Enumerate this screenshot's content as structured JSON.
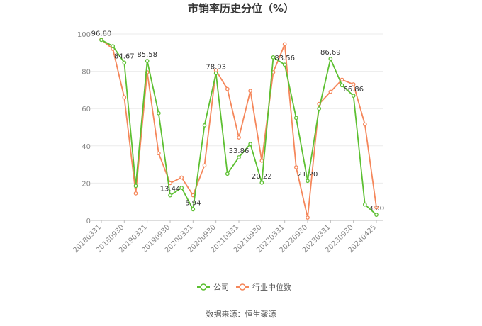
{
  "chart_data": {
    "type": "line",
    "title": "市销率历史分位（%）",
    "source": "数据来源：恒生聚源",
    "ylim": [
      0,
      100
    ],
    "yticks": [
      0,
      20,
      40,
      60,
      80,
      100
    ],
    "x": [
      "20180331",
      "20180630",
      "20180930",
      "20181231",
      "20190331",
      "20190630",
      "20190930",
      "20191231",
      "20200331",
      "20200630",
      "20200930",
      "20201231",
      "20210331",
      "20210630",
      "20210930",
      "20211231",
      "20220331",
      "20220630",
      "20220930",
      "20221231",
      "20230331",
      "20230630",
      "20230930",
      "20231231",
      "20240425"
    ],
    "x_tick_labels": [
      "20180331",
      "20180930",
      "20190331",
      "20190930",
      "20200331",
      "20200930",
      "20210331",
      "20210930",
      "20220331",
      "20220930",
      "20230331",
      "20230930",
      "20240425"
    ],
    "x_tick_indices": [
      0,
      2,
      4,
      6,
      8,
      10,
      12,
      14,
      16,
      18,
      20,
      22,
      24
    ],
    "grid": true,
    "legend_position": "bottom",
    "series": [
      {
        "name": "公司",
        "color": "#5dc032",
        "values": [
          96.8,
          93.5,
          84.67,
          18.5,
          85.58,
          57.5,
          13.44,
          17.5,
          5.94,
          51.0,
          78.93,
          25.0,
          33.86,
          41.0,
          20.22,
          87.5,
          83.56,
          55.0,
          21.2,
          60.0,
          86.69,
          72.5,
          66.86,
          8.5,
          3.0
        ],
        "labels": {
          "0": "96.80",
          "2": "84.67",
          "4": "85.58",
          "6": "13.44",
          "8": "5.94",
          "10": "78.93",
          "12": "33.86",
          "14": "20.22",
          "16": "83.56",
          "18": "21.20",
          "20": "86.69",
          "22": "66.86",
          "24": "3.00"
        }
      },
      {
        "name": "行业中位数",
        "color": "#f5875b",
        "values": [
          97.0,
          92.0,
          66.0,
          14.5,
          79.5,
          36.0,
          20.0,
          23.0,
          13.5,
          29.5,
          80.5,
          70.5,
          44.5,
          69.5,
          32.0,
          79.5,
          94.5,
          28.5,
          1.5,
          62.5,
          69.0,
          75.5,
          73.0,
          51.5,
          7.0
        ]
      }
    ]
  }
}
